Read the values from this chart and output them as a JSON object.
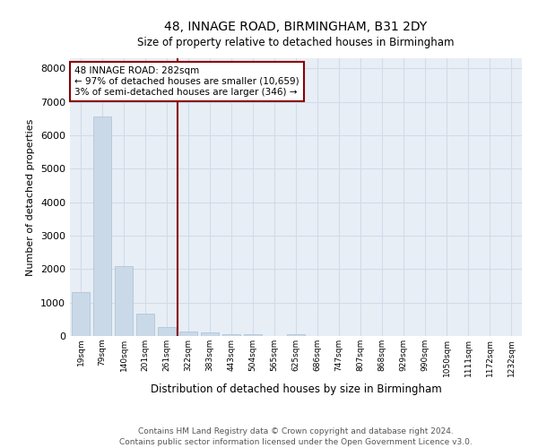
{
  "title1": "48, INNAGE ROAD, BIRMINGHAM, B31 2DY",
  "title2": "Size of property relative to detached houses in Birmingham",
  "xlabel": "Distribution of detached houses by size in Birmingham",
  "ylabel": "Number of detached properties",
  "categories": [
    "19sqm",
    "79sqm",
    "140sqm",
    "201sqm",
    "261sqm",
    "322sqm",
    "383sqm",
    "443sqm",
    "504sqm",
    "565sqm",
    "625sqm",
    "686sqm",
    "747sqm",
    "807sqm",
    "868sqm",
    "929sqm",
    "990sqm",
    "1050sqm",
    "1111sqm",
    "1172sqm",
    "1232sqm"
  ],
  "values": [
    1300,
    6550,
    2080,
    680,
    270,
    140,
    100,
    55,
    55,
    0,
    55,
    0,
    0,
    0,
    0,
    0,
    0,
    0,
    0,
    0,
    0
  ],
  "bar_color": "#c9d9e8",
  "bar_edge_color": "#aac0d4",
  "vline_x": 4.5,
  "vline_color": "#8b0000",
  "annotation_text": "48 INNAGE ROAD: 282sqm\n← 97% of detached houses are smaller (10,659)\n3% of semi-detached houses are larger (346) →",
  "annotation_box_color": "#8b0000",
  "ylim": [
    0,
    8300
  ],
  "yticks": [
    0,
    1000,
    2000,
    3000,
    4000,
    5000,
    6000,
    7000,
    8000
  ],
  "grid_color": "#d0dcea",
  "background_color": "#e8eef5",
  "footer1": "Contains HM Land Registry data © Crown copyright and database right 2024.",
  "footer2": "Contains public sector information licensed under the Open Government Licence v3.0."
}
